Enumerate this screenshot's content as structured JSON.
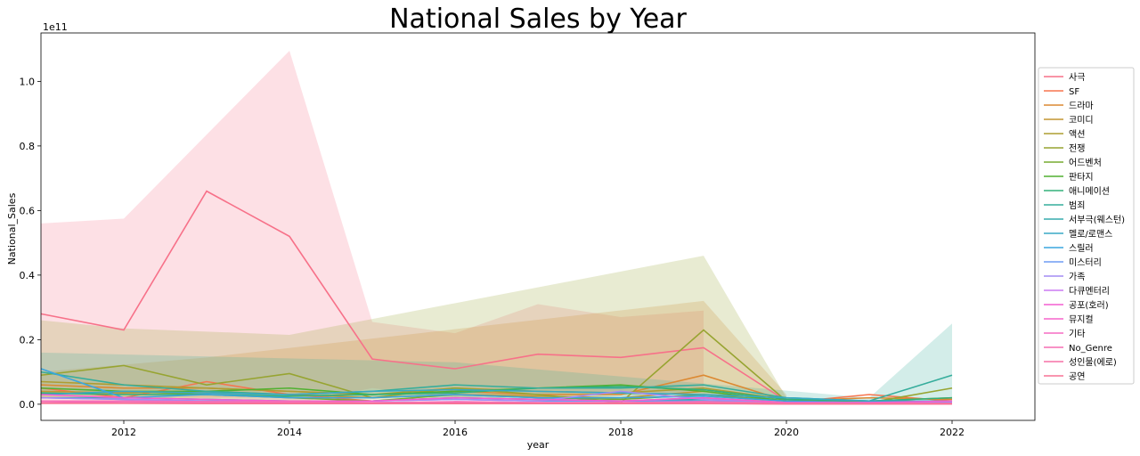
{
  "chart_data": {
    "type": "line",
    "title": "National Sales by Year",
    "xlabel": "year",
    "ylabel": "National_Sales",
    "y_offset_label": "1e11",
    "xlim": [
      2011,
      2023
    ],
    "ylim": [
      -0.05,
      1.15
    ],
    "x_ticks": [
      2012,
      2014,
      2016,
      2018,
      2020,
      2022
    ],
    "y_ticks": [
      0.0,
      0.2,
      0.4,
      0.6,
      0.8,
      1.0
    ],
    "x_tick_labels": [
      "2012",
      "2014",
      "2016",
      "2018",
      "2020",
      "2022"
    ],
    "y_tick_labels": [
      "0.0",
      "0.2",
      "0.4",
      "0.6",
      "0.8",
      "1.0"
    ],
    "grid": false,
    "legend_position": "right",
    "note": "",
    "x": [
      2011,
      2012,
      2013,
      2014,
      2015,
      2016,
      2017,
      2018,
      2019,
      2020,
      2021,
      2022
    ],
    "series": [
      {
        "name": "사극",
        "color": "#f77189",
        "values": [
          0.28,
          0.23,
          0.66,
          0.52,
          0.14,
          0.11,
          0.155,
          0.145,
          0.175,
          0.01,
          0.01,
          0.01
        ],
        "band": [
          [
            2011,
            0.0,
            0.56
          ],
          [
            2012,
            0.0,
            0.575
          ],
          [
            2014,
            0.0,
            1.095
          ],
          [
            2015,
            0.05,
            0.255
          ],
          [
            2016,
            0.02,
            0.22
          ],
          [
            2017,
            0.03,
            0.31
          ],
          [
            2018,
            0.03,
            0.27
          ],
          [
            2019,
            0.04,
            0.29
          ]
        ]
      },
      {
        "name": "SF",
        "color": "#f7754f",
        "values": [
          0.05,
          0.02,
          0.07,
          0.03,
          0.01,
          0.02,
          0.015,
          0.01,
          0.02,
          0.005,
          0.03,
          0.01
        ]
      },
      {
        "name": "드라마",
        "color": "#dc8932",
        "values": [
          0.06,
          0.05,
          0.05,
          0.04,
          0.03,
          0.04,
          0.03,
          0.03,
          0.09,
          0.01,
          0.02,
          0.015
        ],
        "band": [
          [
            2011,
            0.02,
            0.1
          ],
          [
            2013,
            0.02,
            0.145
          ],
          [
            2019,
            0.03,
            0.32
          ],
          [
            2020,
            0.0,
            0.03
          ]
        ]
      },
      {
        "name": "코미디",
        "color": "#c39532",
        "values": [
          0.04,
          0.035,
          0.04,
          0.03,
          0.02,
          0.03,
          0.025,
          0.02,
          0.04,
          0.01,
          0.01,
          0.01
        ]
      },
      {
        "name": "액션",
        "color": "#ae9d31",
        "values": [
          0.07,
          0.06,
          0.05,
          0.04,
          0.03,
          0.05,
          0.04,
          0.035,
          0.05,
          0.015,
          0.01,
          0.02
        ]
      },
      {
        "name": "전쟁",
        "color": "#97a431",
        "values": [
          0.09,
          0.12,
          0.06,
          0.095,
          0.02,
          0.05,
          0.03,
          0.005,
          0.23,
          0.01,
          0.005,
          0.05
        ],
        "band": [
          [
            2011,
            0.02,
            0.26
          ],
          [
            2012,
            0.02,
            0.235
          ],
          [
            2014,
            0.01,
            0.215
          ],
          [
            2019,
            0.03,
            0.46
          ],
          [
            2020,
            0.0,
            0.02
          ]
        ]
      },
      {
        "name": "어드벤처",
        "color": "#77ab31",
        "values": [
          0.03,
          0.04,
          0.03,
          0.02,
          0.01,
          0.03,
          0.02,
          0.015,
          0.03,
          0.01,
          0.005,
          0.01
        ]
      },
      {
        "name": "판타지",
        "color": "#50b131",
        "values": [
          0.05,
          0.04,
          0.04,
          0.05,
          0.03,
          0.04,
          0.05,
          0.06,
          0.04,
          0.01,
          0.005,
          0.01
        ]
      },
      {
        "name": "애니메이션",
        "color": "#33b07a",
        "values": [
          0.035,
          0.03,
          0.03,
          0.025,
          0.03,
          0.035,
          0.05,
          0.055,
          0.045,
          0.015,
          0.01,
          0.02
        ]
      },
      {
        "name": "범죄",
        "color": "#35ad9c",
        "values": [
          0.1,
          0.06,
          0.04,
          0.03,
          0.04,
          0.06,
          0.05,
          0.05,
          0.06,
          0.02,
          0.01,
          0.09
        ],
        "band": [
          [
            2011,
            0.03,
            0.16
          ],
          [
            2016,
            0.02,
            0.13
          ],
          [
            2021,
            0.0,
            0.02
          ],
          [
            2022,
            0.0,
            0.25
          ]
        ]
      },
      {
        "name": "서부극(웨스턴)",
        "color": "#36abae",
        "values": [
          0.02,
          0.02,
          0.015,
          0.01,
          0.01,
          0.02,
          0.015,
          0.01,
          0.015,
          0.005,
          0.005,
          0.005
        ]
      },
      {
        "name": "멜로/로맨스",
        "color": "#38a9c5",
        "values": [
          0.03,
          0.04,
          0.035,
          0.03,
          0.04,
          0.045,
          0.04,
          0.035,
          0.03,
          0.02,
          0.01,
          0.01
        ]
      },
      {
        "name": "스릴러",
        "color": "#3aa5df",
        "values": [
          0.11,
          0.02,
          0.03,
          0.02,
          0.02,
          0.03,
          0.02,
          0.02,
          0.025,
          0.01,
          0.005,
          0.01
        ]
      },
      {
        "name": "미스터리",
        "color": "#6e9bf4",
        "values": [
          0.02,
          0.015,
          0.01,
          0.01,
          0.01,
          0.015,
          0.01,
          0.01,
          0.01,
          0.005,
          0.005,
          0.005
        ]
      },
      {
        "name": "가족",
        "color": "#a48cf4",
        "values": [
          0.02,
          0.015,
          0.01,
          0.01,
          0.01,
          0.015,
          0.01,
          0.04,
          0.015,
          0.005,
          0.005,
          0.005
        ]
      },
      {
        "name": "다큐멘터리",
        "color": "#cc7af4",
        "values": [
          0.01,
          0.01,
          0.005,
          0.005,
          0.005,
          0.005,
          0.005,
          0.005,
          0.005,
          0.002,
          0.002,
          0.002
        ]
      },
      {
        "name": "공포(호러)",
        "color": "#f45fd0",
        "values": [
          0.03,
          0.02,
          0.015,
          0.01,
          0.01,
          0.02,
          0.015,
          0.01,
          0.02,
          0.005,
          0.005,
          0.01
        ]
      },
      {
        "name": "뮤지컬",
        "color": "#f565cc",
        "values": [
          0.01,
          0.005,
          0.005,
          0.005,
          0.003,
          0.005,
          0.003,
          0.003,
          0.005,
          0.002,
          0.002,
          0.002
        ]
      },
      {
        "name": "기타",
        "color": "#f66bc3",
        "values": [
          0.005,
          0.005,
          0.003,
          0.003,
          0.003,
          0.005,
          0.003,
          0.003,
          0.005,
          0.002,
          0.002,
          0.002
        ]
      },
      {
        "name": "No_Genre",
        "color": "#f66fb4",
        "values": [
          0.01,
          0.01,
          0.008,
          0.008,
          0.005,
          0.008,
          0.005,
          0.005,
          0.008,
          0.003,
          0.003,
          0.003
        ]
      },
      {
        "name": "성인물(에로)",
        "color": "#f670a5",
        "values": [
          0.004,
          0.004,
          0.003,
          0.003,
          0.003,
          0.003,
          0.003,
          0.003,
          0.003,
          0.001,
          0.001,
          0.001
        ]
      },
      {
        "name": "공연",
        "color": "#f77295",
        "values": [
          0.003,
          0.003,
          0.002,
          0.002,
          0.002,
          0.002,
          0.002,
          0.002,
          0.002,
          0.001,
          0.001,
          0.001
        ]
      }
    ]
  }
}
